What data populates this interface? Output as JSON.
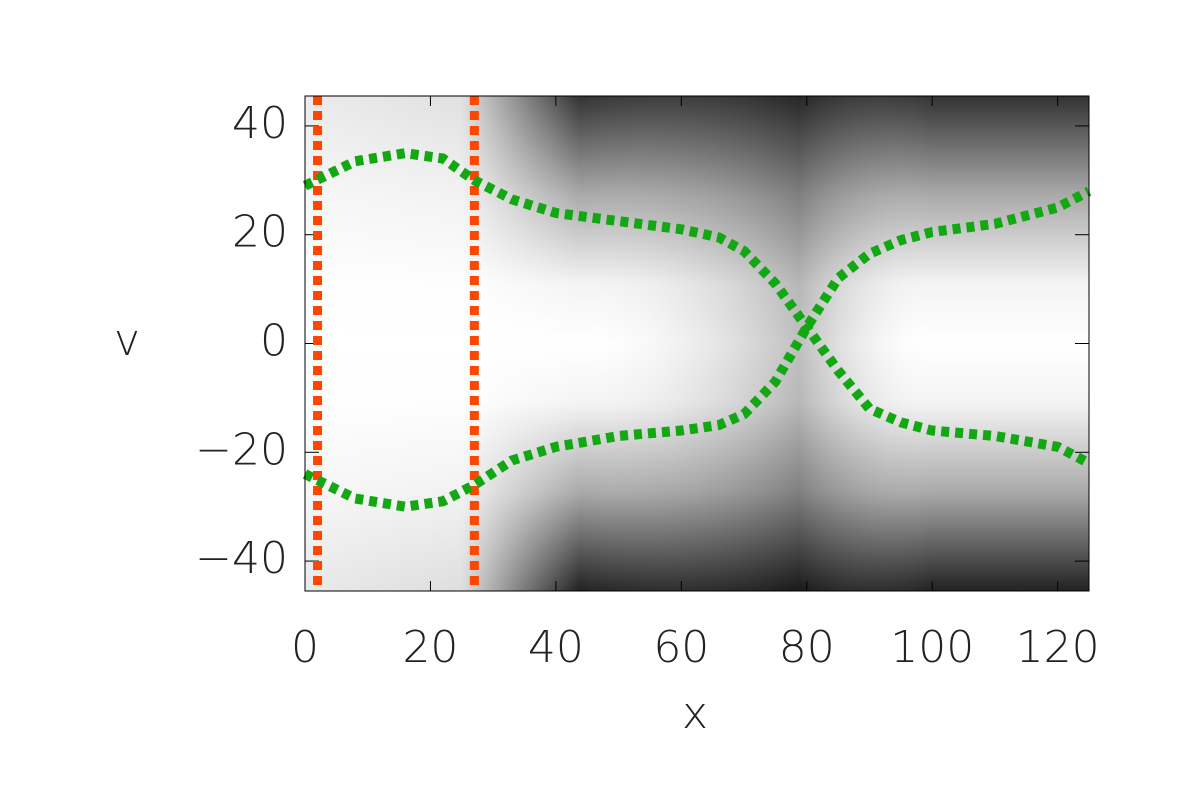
{
  "chart_data": {
    "type": "line",
    "x_label": "x",
    "y_label": "v",
    "xlim": [
      0,
      125
    ],
    "ylim": [
      -45.5,
      45.5
    ],
    "xticks": [
      0,
      20,
      40,
      60,
      80,
      100,
      120
    ],
    "yticks": [
      {
        "value": -40,
        "label": "−40"
      },
      {
        "value": -20,
        "label": "−20"
      },
      0,
      20,
      40
    ],
    "vlines": {
      "color": "#ff4500",
      "values": [
        2,
        27
      ]
    },
    "series": [
      {
        "color": "#13a813",
        "x": [
          0,
          8,
          16,
          22,
          27,
          33,
          40,
          50,
          60,
          66,
          70,
          75,
          80,
          85,
          90,
          95,
          100,
          110,
          120,
          125
        ],
        "values": [
          29,
          33.5,
          35,
          34,
          30,
          26.5,
          24,
          22.5,
          21,
          19.5,
          17,
          11,
          3,
          -5,
          -12,
          -14.5,
          -16,
          -17,
          -19,
          -22
        ]
      },
      {
        "color": "#13a813",
        "x": [
          0,
          8,
          16,
          22,
          27,
          33,
          40,
          50,
          60,
          66,
          70,
          75,
          80,
          85,
          90,
          95,
          100,
          110,
          120,
          125
        ],
        "values": [
          -24,
          -28.5,
          -30,
          -29,
          -26,
          -21.5,
          -19,
          -17,
          -16,
          -15,
          -13,
          -7,
          3,
          12,
          16.5,
          19,
          20.5,
          22,
          25,
          28
        ]
      }
    ]
  }
}
